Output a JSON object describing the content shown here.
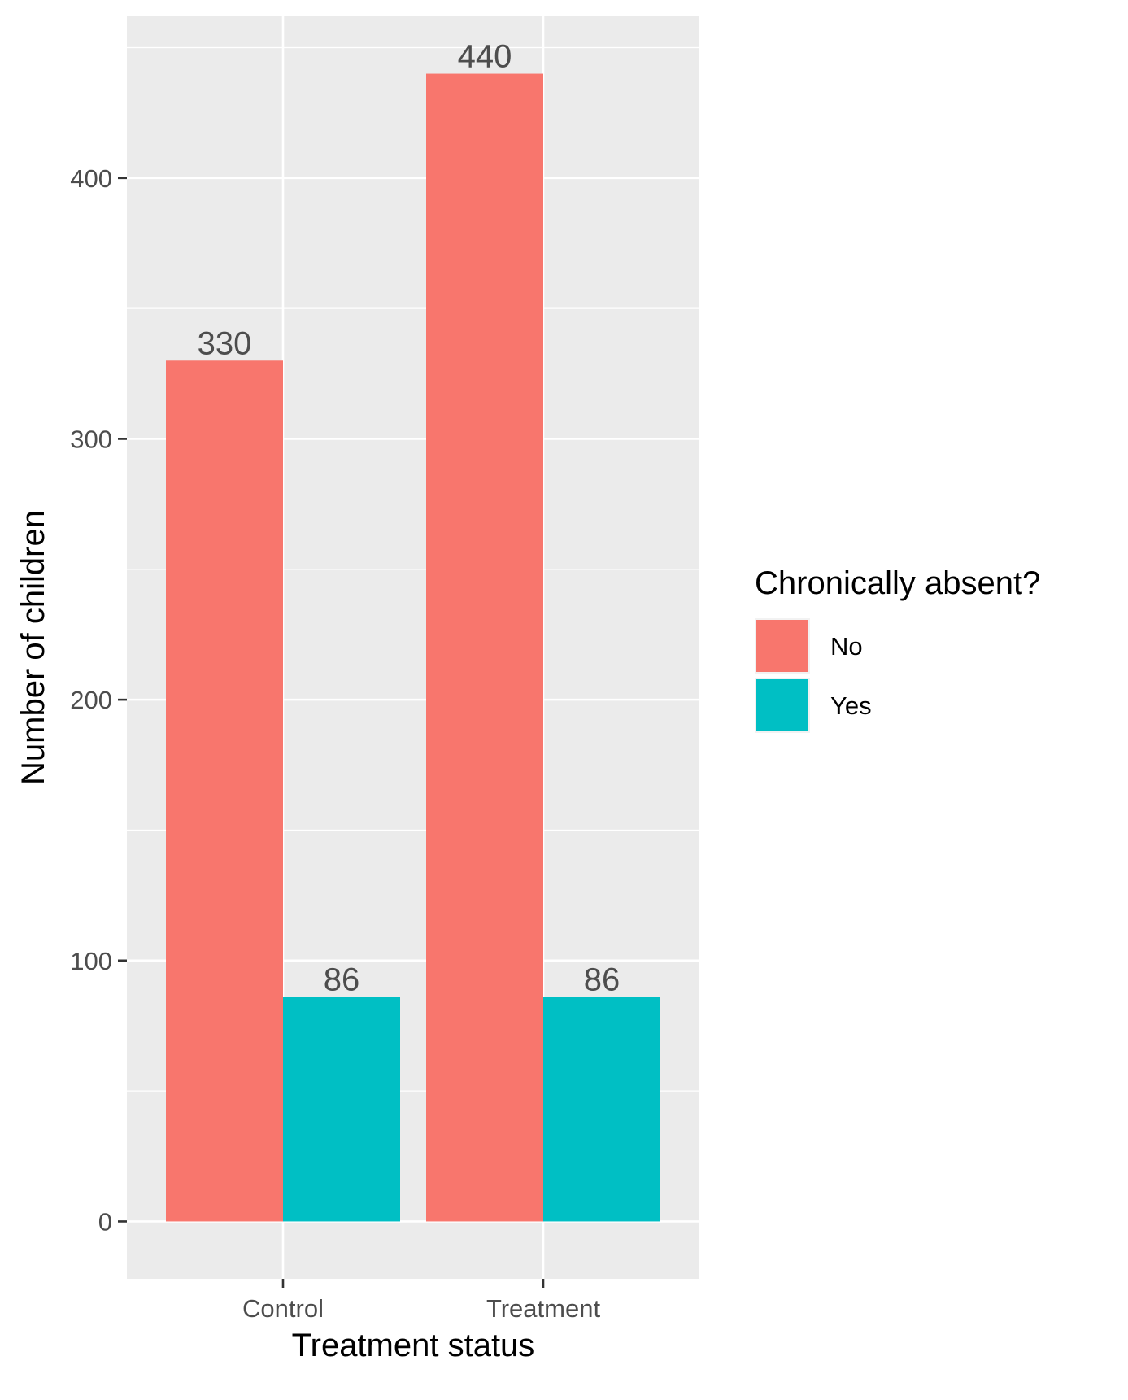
{
  "chart_data": {
    "type": "bar",
    "title": "",
    "xlabel": "Treatment status",
    "ylabel": "Number of children",
    "categories": [
      "Control",
      "Treatment"
    ],
    "series": [
      {
        "name": "No",
        "values": [
          330,
          440
        ],
        "color": "#F8766D"
      },
      {
        "name": "Yes",
        "values": [
          86,
          86
        ],
        "color": "#00BFC4"
      }
    ],
    "ylim": [
      -22,
      462
    ],
    "y_ticks": [
      0,
      100,
      200,
      300,
      400
    ],
    "y_tick_labels": [
      "0",
      "100",
      "200",
      "300",
      "400"
    ],
    "data_labels": [
      "330",
      "440",
      "86",
      "86"
    ],
    "grid": true,
    "legend": {
      "title": "Chronically absent?",
      "placement": "right",
      "entries": [
        "No",
        "Yes"
      ]
    },
    "panel_background": "#EBEBEB",
    "grid_color": "#FFFFFF"
  }
}
